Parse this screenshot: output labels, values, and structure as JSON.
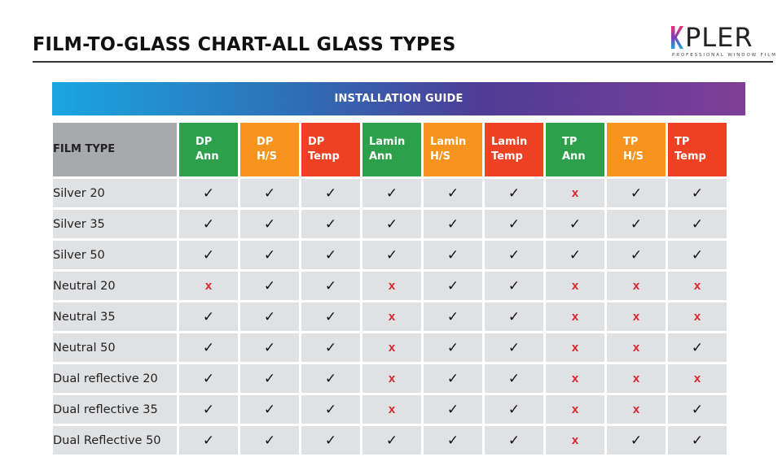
{
  "page": {
    "title": "FILM-TO-GLASS CHART-ALL GLASS TYPES",
    "logo_text": "PLER",
    "logo_subtitle": "PROFESSIONAL WINDOW FILM"
  },
  "table": {
    "banner": "INSTALLATION GUIDE",
    "first_header": "FILM TYPE",
    "columns": [
      {
        "l1": "DP",
        "l2": "Ann",
        "color": "#2ea04b"
      },
      {
        "l1": "DP",
        "l2": "H/S",
        "color": "#f7941d"
      },
      {
        "l1": "DP",
        "l2": "Temp",
        "color": "#ee4023"
      },
      {
        "l1": "Lamin",
        "l2": "Ann",
        "color": "#2ea04b"
      },
      {
        "l1": "Lamin",
        "l2": "H/S",
        "color": "#f7941d"
      },
      {
        "l1": "Lamin",
        "l2": "Temp",
        "color": "#ee4023"
      },
      {
        "l1": "TP",
        "l2": "Ann",
        "color": "#2ea04b"
      },
      {
        "l1": "TP",
        "l2": "H/S",
        "color": "#f7941d"
      },
      {
        "l1": "TP",
        "l2": "Temp",
        "color": "#ee4023"
      }
    ],
    "rows": [
      {
        "name": "Silver 20",
        "cells": [
          "✓",
          "✓",
          "✓",
          "✓",
          "✓",
          "✓",
          "x",
          "✓",
          "✓"
        ]
      },
      {
        "name": "Silver 35",
        "cells": [
          "✓",
          "✓",
          "✓",
          "✓",
          "✓",
          "✓",
          "✓",
          "✓",
          "✓"
        ]
      },
      {
        "name": "Silver 50",
        "cells": [
          "✓",
          "✓",
          "✓",
          "✓",
          "✓",
          "✓",
          "✓",
          "✓",
          "✓"
        ]
      },
      {
        "name": "Neutral 20",
        "cells": [
          "x",
          "✓",
          "✓",
          "x",
          "✓",
          "✓",
          "x",
          "x",
          "x"
        ]
      },
      {
        "name": "Neutral 35",
        "cells": [
          "✓",
          "✓",
          "✓",
          "x",
          "✓",
          "✓",
          "x",
          "x",
          "x"
        ]
      },
      {
        "name": "Neutral 50",
        "cells": [
          "✓",
          "✓",
          "✓",
          "x",
          "✓",
          "✓",
          "x",
          "x",
          "✓"
        ]
      },
      {
        "name": "Dual reflective 20",
        "cells": [
          "✓",
          "✓",
          "✓",
          "x",
          "✓",
          "✓",
          "x",
          "x",
          "x"
        ]
      },
      {
        "name": "Dual reflective 35",
        "cells": [
          "✓",
          "✓",
          "✓",
          "x",
          "✓",
          "✓",
          "x",
          "x",
          "✓"
        ]
      },
      {
        "name": "Dual Reflective 50",
        "cells": [
          "✓",
          "✓",
          "✓",
          "✓",
          "✓",
          "✓",
          "x",
          "✓",
          "✓"
        ]
      }
    ]
  }
}
